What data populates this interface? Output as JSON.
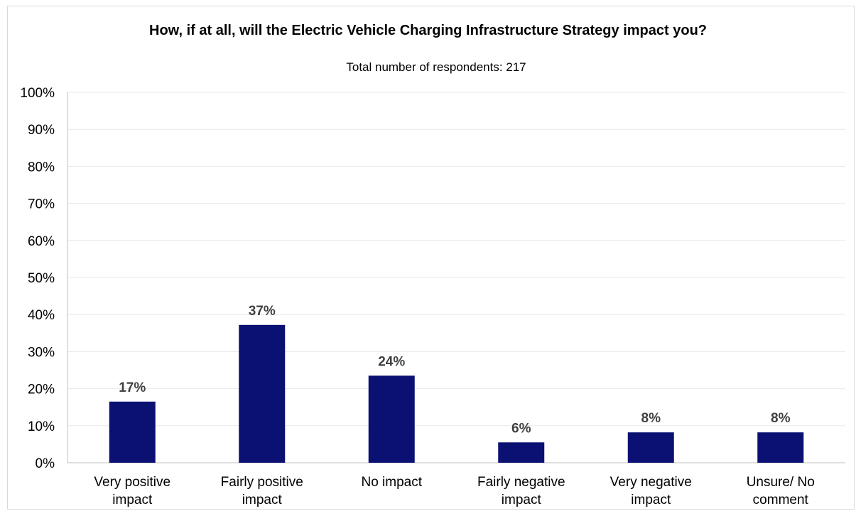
{
  "chart_data": {
    "type": "bar",
    "title": "How, if at all, will the Electric Vehicle Charging Infrastructure Strategy impact you?",
    "subtitle": "Total number of respondents: 217",
    "categories": [
      [
        "Very positive",
        "impact"
      ],
      [
        "Fairly positive",
        "impact"
      ],
      [
        "No impact"
      ],
      [
        "Fairly negative",
        "impact"
      ],
      [
        "Very negative",
        "impact"
      ],
      [
        "Unsure/ No",
        "comment"
      ]
    ],
    "values": [
      16.5,
      37.2,
      23.5,
      5.5,
      8.2,
      8.2
    ],
    "data_labels": [
      "17%",
      "37%",
      "24%",
      "6%",
      "8%",
      "8%"
    ],
    "ylim": [
      0,
      100
    ],
    "yticks": [
      0,
      10,
      20,
      30,
      40,
      50,
      60,
      70,
      80,
      90,
      100
    ],
    "ytick_labels": [
      "0%",
      "10%",
      "20%",
      "30%",
      "40%",
      "50%",
      "60%",
      "70%",
      "80%",
      "90%",
      "100%"
    ],
    "grid": true,
    "legend": "none",
    "bar_color": "#0a1172",
    "grid_color": "#e8e8e8",
    "axis_color": "#bfbfbf"
  }
}
